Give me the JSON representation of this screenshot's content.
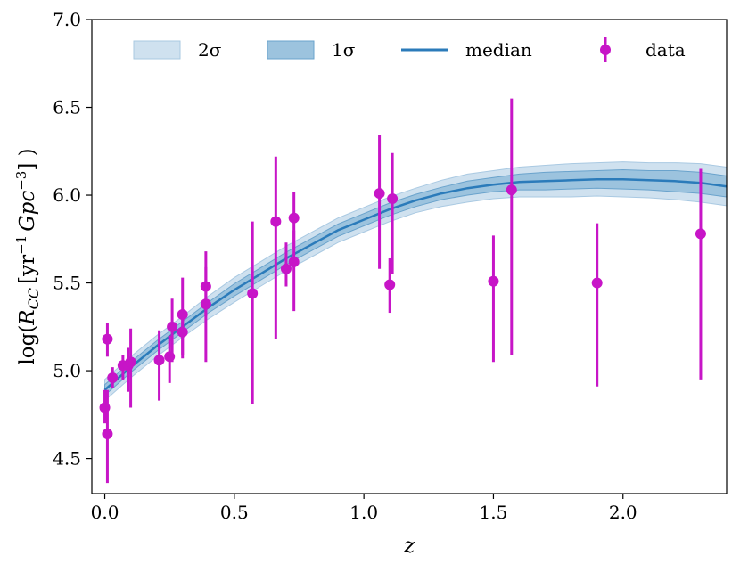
{
  "chart_data": {
    "type": "line",
    "xlabel": "z",
    "ylabel_prefix": "log(",
    "ylabel_R": "R",
    "ylabel_sub": "CC",
    "ylabel_units": "[yr",
    "ylabel_exp1": "−1",
    "ylabel_gpc": "Gpc",
    "ylabel_exp2": "−3",
    "ylabel_suffix": "] )",
    "xlim": [
      -0.05,
      2.4
    ],
    "ylim": [
      4.3,
      7.0
    ],
    "xticks": [
      0.0,
      0.5,
      1.0,
      1.5,
      2.0
    ],
    "xtick_labels": [
      "0.0",
      "0.5",
      "1.0",
      "1.5",
      "2.0"
    ],
    "yticks": [
      4.5,
      5.0,
      5.5,
      6.0,
      6.5,
      7.0
    ],
    "ytick_labels": [
      "4.5",
      "5.0",
      "5.5",
      "6.0",
      "6.5",
      "7.0"
    ],
    "legend": {
      "placement": "top",
      "entries": [
        {
          "key": "band2",
          "label": "2σ"
        },
        {
          "key": "band1",
          "label": "1σ"
        },
        {
          "key": "median",
          "label": "median"
        },
        {
          "key": "data",
          "label": "data"
        }
      ]
    },
    "model": {
      "z": [
        0.0,
        0.1,
        0.2,
        0.3,
        0.4,
        0.5,
        0.6,
        0.7,
        0.8,
        0.9,
        1.0,
        1.1,
        1.2,
        1.3,
        1.4,
        1.5,
        1.6,
        1.7,
        1.8,
        1.9,
        2.0,
        2.1,
        2.2,
        2.3,
        2.4
      ],
      "median": [
        4.89,
        5.02,
        5.14,
        5.25,
        5.36,
        5.46,
        5.55,
        5.64,
        5.72,
        5.8,
        5.86,
        5.92,
        5.97,
        6.01,
        6.04,
        6.06,
        6.075,
        6.08,
        6.085,
        6.09,
        6.09,
        6.085,
        6.08,
        6.07,
        6.05
      ],
      "sigma1": [
        0.03,
        0.03,
        0.03,
        0.03,
        0.03,
        0.035,
        0.035,
        0.035,
        0.035,
        0.035,
        0.035,
        0.035,
        0.035,
        0.035,
        0.04,
        0.04,
        0.045,
        0.05,
        0.05,
        0.05,
        0.055,
        0.055,
        0.06,
        0.06,
        0.06
      ],
      "sigma2": [
        0.06,
        0.06,
        0.06,
        0.06,
        0.065,
        0.07,
        0.07,
        0.07,
        0.07,
        0.07,
        0.07,
        0.07,
        0.07,
        0.075,
        0.08,
        0.08,
        0.085,
        0.09,
        0.095,
        0.095,
        0.1,
        0.1,
        0.105,
        0.11,
        0.11
      ]
    },
    "observations": [
      {
        "z": 0.0,
        "y": 4.79,
        "lo": 4.7,
        "hi": 4.89
      },
      {
        "z": 0.01,
        "y": 4.64,
        "lo": 4.36,
        "hi": 4.89
      },
      {
        "z": 0.01,
        "y": 5.18,
        "lo": 5.08,
        "hi": 5.27
      },
      {
        "z": 0.03,
        "y": 4.96,
        "lo": 4.9,
        "hi": 5.02
      },
      {
        "z": 0.07,
        "y": 5.03,
        "lo": 4.95,
        "hi": 5.09
      },
      {
        "z": 0.09,
        "y": 5.03,
        "lo": 4.88,
        "hi": 5.13
      },
      {
        "z": 0.1,
        "y": 5.05,
        "lo": 4.79,
        "hi": 5.24
      },
      {
        "z": 0.21,
        "y": 5.06,
        "lo": 4.83,
        "hi": 5.23
      },
      {
        "z": 0.25,
        "y": 5.08,
        "lo": 4.93,
        "hi": 5.2
      },
      {
        "z": 0.26,
        "y": 5.25,
        "lo": 5.05,
        "hi": 5.41
      },
      {
        "z": 0.3,
        "y": 5.22,
        "lo": 5.09,
        "hi": 5.34
      },
      {
        "z": 0.3,
        "y": 5.32,
        "lo": 5.07,
        "hi": 5.53
      },
      {
        "z": 0.39,
        "y": 5.48,
        "lo": 5.31,
        "hi": 5.68
      },
      {
        "z": 0.39,
        "y": 5.38,
        "lo": 5.05,
        "hi": 5.59
      },
      {
        "z": 0.57,
        "y": 5.44,
        "lo": 4.81,
        "hi": 5.85
      },
      {
        "z": 0.66,
        "y": 5.85,
        "lo": 5.18,
        "hi": 6.22
      },
      {
        "z": 0.7,
        "y": 5.58,
        "lo": 5.48,
        "hi": 5.73
      },
      {
        "z": 0.73,
        "y": 5.87,
        "lo": 5.69,
        "hi": 6.02
      },
      {
        "z": 0.73,
        "y": 5.62,
        "lo": 5.34,
        "hi": 5.8
      },
      {
        "z": 1.06,
        "y": 6.01,
        "lo": 5.58,
        "hi": 6.34
      },
      {
        "z": 1.1,
        "y": 5.49,
        "lo": 5.33,
        "hi": 5.64
      },
      {
        "z": 1.11,
        "y": 5.98,
        "lo": 5.55,
        "hi": 6.24
      },
      {
        "z": 1.5,
        "y": 5.51,
        "lo": 5.05,
        "hi": 5.77
      },
      {
        "z": 1.57,
        "y": 6.03,
        "lo": 5.09,
        "hi": 6.55
      },
      {
        "z": 1.9,
        "y": 5.5,
        "lo": 4.91,
        "hi": 5.84
      },
      {
        "z": 2.3,
        "y": 5.78,
        "lo": 4.95,
        "hi": 6.15
      }
    ],
    "colors": {
      "band2": "#cfe1ef",
      "band2_edge": "#a9c9e2",
      "band1": "#9cc3de",
      "band1_edge": "#6aa3cc",
      "median": "#2b7bba",
      "data": "#c715c7",
      "axes": "#000000"
    }
  }
}
